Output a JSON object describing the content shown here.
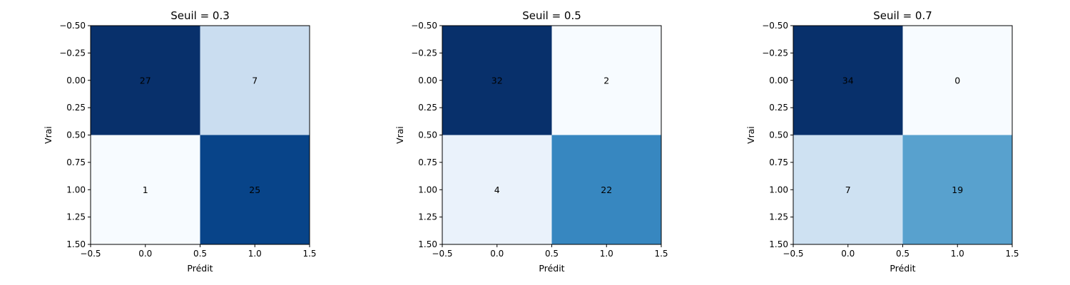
{
  "chart_data": [
    {
      "type": "heatmap",
      "title": "Seuil = 0.3",
      "xlabel": "Prédit",
      "ylabel": "Vrai",
      "xlim": [
        -0.5,
        1.5
      ],
      "ylim": [
        1.5,
        -0.5
      ],
      "xticks": [
        "−0.5",
        "0.0",
        "0.5",
        "1.0",
        "1.5"
      ],
      "yticks": [
        "−0.50",
        "−0.25",
        "0.00",
        "0.25",
        "0.50",
        "0.75",
        "1.00",
        "1.25",
        "1.50"
      ],
      "colormap": "Blues",
      "matrix": [
        [
          27,
          7
        ],
        [
          1,
          25
        ]
      ]
    },
    {
      "type": "heatmap",
      "title": "Seuil = 0.5",
      "xlabel": "Prédit",
      "ylabel": "Vrai",
      "xlim": [
        -0.5,
        1.5
      ],
      "ylim": [
        1.5,
        -0.5
      ],
      "xticks": [
        "−0.5",
        "0.0",
        "0.5",
        "1.0",
        "1.5"
      ],
      "yticks": [
        "−0.50",
        "−0.25",
        "0.00",
        "0.25",
        "0.50",
        "0.75",
        "1.00",
        "1.25",
        "1.50"
      ],
      "colormap": "Blues",
      "matrix": [
        [
          32,
          2
        ],
        [
          4,
          22
        ]
      ]
    },
    {
      "type": "heatmap",
      "title": "Seuil = 0.7",
      "xlabel": "Prédit",
      "ylabel": "Vrai",
      "xlim": [
        -0.5,
        1.5
      ],
      "ylim": [
        1.5,
        -0.5
      ],
      "xticks": [
        "−0.5",
        "0.0",
        "0.5",
        "1.0",
        "1.5"
      ],
      "yticks": [
        "−0.50",
        "−0.25",
        "0.00",
        "0.25",
        "0.50",
        "0.75",
        "1.00",
        "1.25",
        "1.50"
      ],
      "colormap": "Blues",
      "matrix": [
        [
          34,
          0
        ],
        [
          7,
          19
        ]
      ]
    }
  ]
}
